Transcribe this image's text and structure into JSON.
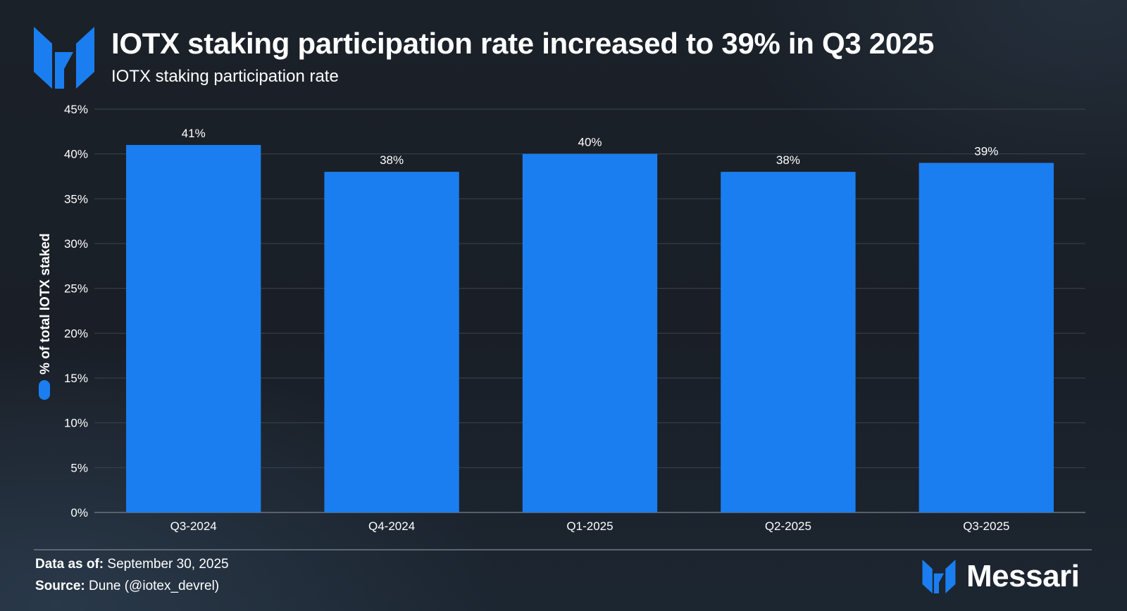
{
  "header": {
    "title": "IOTX staking participation rate increased to 39% in Q3 2025",
    "subtitle": "IOTX staking participation rate"
  },
  "chart_data": {
    "type": "bar",
    "categories": [
      "Q3-2024",
      "Q4-2024",
      "Q1-2025",
      "Q2-2025",
      "Q3-2025"
    ],
    "values": [
      41,
      38,
      40,
      38,
      39
    ],
    "data_labels": [
      "41%",
      "38%",
      "40%",
      "38%",
      "39%"
    ],
    "ylabel": "% of total IOTX staked",
    "ylim": [
      0,
      45
    ],
    "yticks": [
      0,
      5,
      10,
      15,
      20,
      25,
      30,
      35,
      40,
      45
    ],
    "ytick_labels": [
      "0%",
      "5%",
      "10%",
      "15%",
      "20%",
      "25%",
      "30%",
      "35%",
      "40%",
      "45%"
    ],
    "grid": true,
    "legend": "left, vertical with y-axis label",
    "bar_color": "#1b7ef0",
    "grid_color": "#3a434e"
  },
  "footer": {
    "data_as_of_label": "Data as of:",
    "data_as_of_value": "September 30, 2025",
    "source_label": "Source:",
    "source_value": "Dune (@iotex_devrel)"
  },
  "brand": {
    "name": "Messari",
    "logo_icon": "messari-logo-icon",
    "color": "#1b7ef0"
  }
}
